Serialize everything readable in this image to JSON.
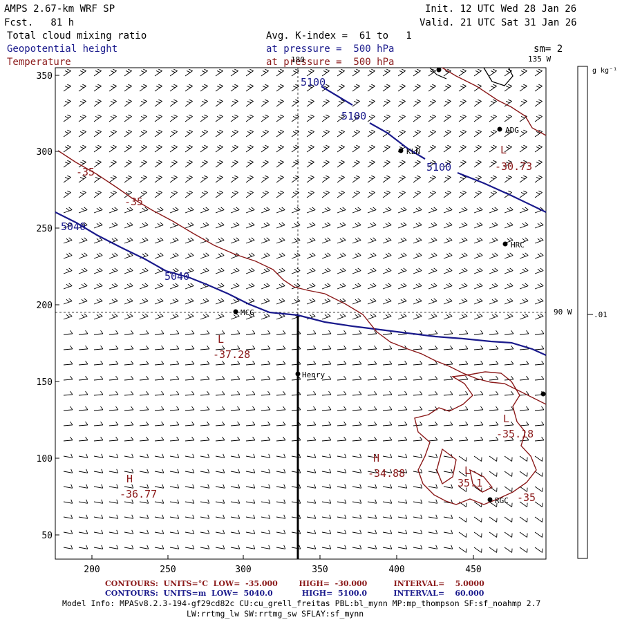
{
  "header": {
    "title": "AMPS 2.67-km WRF SP",
    "fcst": "Fcst.   81 h",
    "init": "Init. 12 UTC Wed 28 Jan 26",
    "valid": "Valid. 21 UTC Sat 31 Jan 26",
    "field1": "Total cloud mixing ratio",
    "field2": "Geopotential height",
    "field3": "Temperature",
    "avg": "Avg. K-index =  61 to   1",
    "pres1": "at pressure =  500 hPa",
    "pres2": "at pressure =  500 hPa",
    "sm": "sm= 2"
  },
  "axes": {
    "x_ticks": [
      "200",
      "250",
      "300",
      "350",
      "400",
      "450"
    ],
    "y_ticks": [
      "350",
      "300",
      "250",
      "200",
      "150",
      "100",
      "50"
    ],
    "meridian_top": "180",
    "meridian_135": "135 W",
    "meridian_90": "90 W"
  },
  "colorbar": {
    "units": "g kg⁻¹",
    "tick": ".01"
  },
  "labels": {
    "contours": [
      {
        "text": "5100",
        "kind": "height"
      },
      {
        "text": "5100",
        "kind": "height"
      },
      {
        "text": "5100",
        "kind": "height"
      },
      {
        "text": "5040",
        "kind": "height"
      },
      {
        "text": "5040",
        "kind": "height"
      },
      {
        "text": "-35",
        "kind": "temp"
      },
      {
        "text": "-35",
        "kind": "temp"
      },
      {
        "text": "-35",
        "kind": "temp"
      }
    ],
    "extrema": [
      {
        "mark": "L",
        "value": "-30.73"
      },
      {
        "mark": "L",
        "value": "-37.28"
      },
      {
        "mark": "L",
        "value": "-35.18"
      },
      {
        "mark": "H",
        "value": "-34.88"
      },
      {
        "mark": "H",
        "value": "-36.77"
      },
      {
        "mark": "L",
        "value": "35.1"
      }
    ],
    "stations": [
      "ADG",
      "KLN",
      "HRC",
      "MCG",
      "Henry",
      "RGC"
    ]
  },
  "footer": {
    "red_line": "CONTOURS:  UNITS=°C  LOW=  -35.000        HIGH=  -30.000          INTERVAL=    5.0000",
    "blue_line": "CONTOURS:  UNITS=m  LOW=  5040.0           HIGH=  5100.0          INTERVAL=    60.000",
    "model1": "Model Info: MPASv8.2.3-194-gf29cd82c CU:cu_grell_freitas PBL:bl_mynn MP:mp_thompson SF:sf_noahmp 2.7",
    "model2": "LW:rrtmg_lw SW:rrtmg_sw SFLAY:sf_mynn"
  },
  "colors": {
    "height": "#1a1a8c",
    "temperature": "#8b1a1a",
    "wind": "#000000"
  }
}
